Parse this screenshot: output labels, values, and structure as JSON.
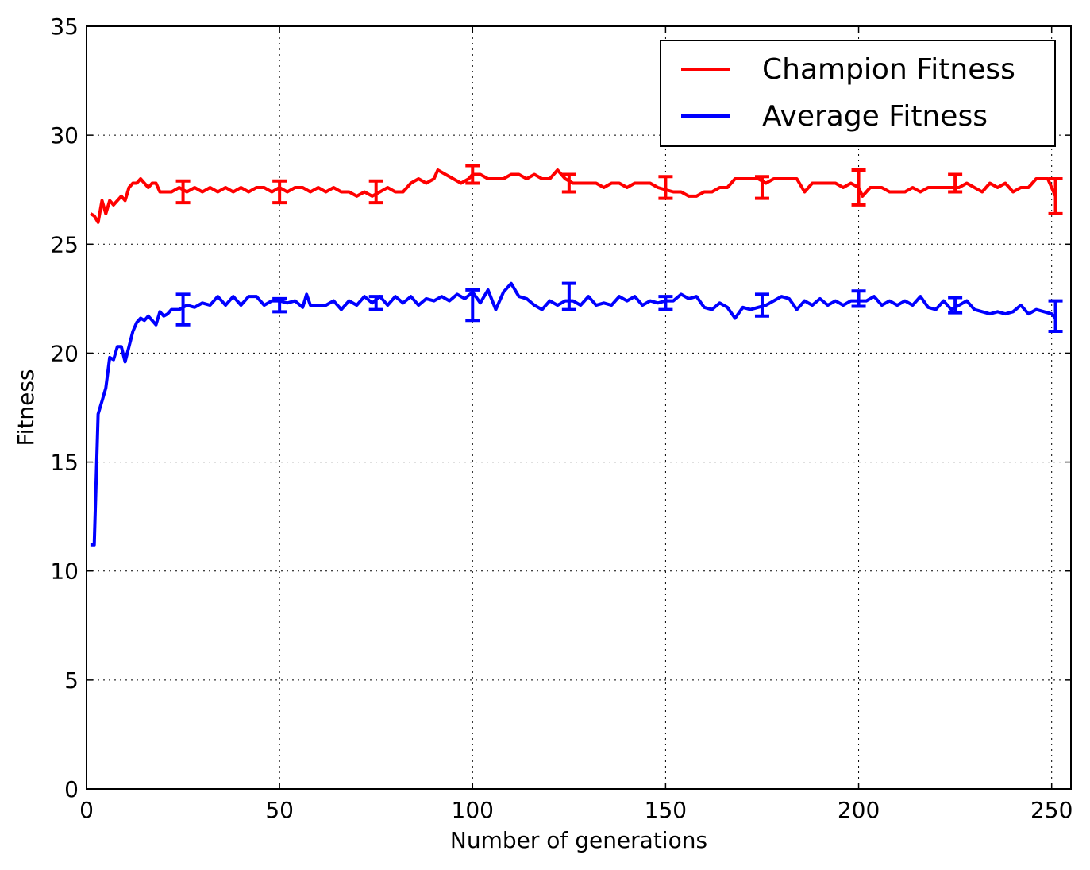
{
  "chart_data": {
    "type": "line",
    "xlabel": "Number of generations",
    "ylabel": "Fitness",
    "xlim": [
      0,
      255
    ],
    "ylim": [
      0,
      35
    ],
    "xticks": [
      0,
      50,
      100,
      150,
      200,
      250
    ],
    "yticks": [
      0,
      5,
      10,
      15,
      20,
      25,
      30,
      35
    ],
    "grid": true,
    "legend_position": "top-right",
    "series": [
      {
        "name": "Champion Fitness",
        "color": "#ff0000",
        "points": [
          [
            1,
            26.4
          ],
          [
            2,
            26.3
          ],
          [
            3,
            26.0
          ],
          [
            4,
            27.0
          ],
          [
            5,
            26.4
          ],
          [
            6,
            27.0
          ],
          [
            7,
            26.8
          ],
          [
            8,
            27.0
          ],
          [
            9,
            27.2
          ],
          [
            10,
            27.0
          ],
          [
            11,
            27.6
          ],
          [
            12,
            27.8
          ],
          [
            13,
            27.8
          ],
          [
            14,
            28.0
          ],
          [
            15,
            27.8
          ],
          [
            16,
            27.6
          ],
          [
            17,
            27.8
          ],
          [
            18,
            27.8
          ],
          [
            19,
            27.4
          ],
          [
            20,
            27.4
          ],
          [
            22,
            27.4
          ],
          [
            24,
            27.6
          ],
          [
            26,
            27.4
          ],
          [
            28,
            27.6
          ],
          [
            30,
            27.4
          ],
          [
            32,
            27.6
          ],
          [
            34,
            27.4
          ],
          [
            36,
            27.6
          ],
          [
            38,
            27.4
          ],
          [
            40,
            27.6
          ],
          [
            42,
            27.4
          ],
          [
            44,
            27.6
          ],
          [
            46,
            27.6
          ],
          [
            48,
            27.4
          ],
          [
            50,
            27.6
          ],
          [
            52,
            27.4
          ],
          [
            54,
            27.6
          ],
          [
            56,
            27.6
          ],
          [
            58,
            27.4
          ],
          [
            60,
            27.6
          ],
          [
            62,
            27.4
          ],
          [
            64,
            27.6
          ],
          [
            66,
            27.4
          ],
          [
            68,
            27.4
          ],
          [
            70,
            27.2
          ],
          [
            72,
            27.4
          ],
          [
            74,
            27.2
          ],
          [
            76,
            27.4
          ],
          [
            78,
            27.6
          ],
          [
            80,
            27.4
          ],
          [
            82,
            27.4
          ],
          [
            84,
            27.8
          ],
          [
            86,
            28.0
          ],
          [
            88,
            27.8
          ],
          [
            90,
            28.0
          ],
          [
            91,
            28.4
          ],
          [
            93,
            28.2
          ],
          [
            95,
            28.0
          ],
          [
            97,
            27.8
          ],
          [
            99,
            28.0
          ],
          [
            100,
            28.2
          ],
          [
            102,
            28.2
          ],
          [
            104,
            28.0
          ],
          [
            106,
            28.0
          ],
          [
            108,
            28.0
          ],
          [
            110,
            28.2
          ],
          [
            112,
            28.2
          ],
          [
            114,
            28.0
          ],
          [
            116,
            28.2
          ],
          [
            118,
            28.0
          ],
          [
            120,
            28.0
          ],
          [
            122,
            28.4
          ],
          [
            124,
            28.0
          ],
          [
            126,
            27.8
          ],
          [
            128,
            27.8
          ],
          [
            132,
            27.8
          ],
          [
            134,
            27.6
          ],
          [
            136,
            27.8
          ],
          [
            138,
            27.8
          ],
          [
            140,
            27.6
          ],
          [
            142,
            27.8
          ],
          [
            146,
            27.8
          ],
          [
            148,
            27.6
          ],
          [
            152,
            27.4
          ],
          [
            154,
            27.4
          ],
          [
            156,
            27.2
          ],
          [
            158,
            27.2
          ],
          [
            160,
            27.4
          ],
          [
            162,
            27.4
          ],
          [
            164,
            27.6
          ],
          [
            166,
            27.6
          ],
          [
            168,
            28.0
          ],
          [
            174,
            28.0
          ],
          [
            176,
            27.8
          ],
          [
            178,
            28.0
          ],
          [
            184,
            28.0
          ],
          [
            186,
            27.4
          ],
          [
            188,
            27.8
          ],
          [
            194,
            27.8
          ],
          [
            196,
            27.6
          ],
          [
            198,
            27.8
          ],
          [
            200,
            27.6
          ],
          [
            201,
            27.2
          ],
          [
            203,
            27.6
          ],
          [
            206,
            27.6
          ],
          [
            208,
            27.4
          ],
          [
            212,
            27.4
          ],
          [
            214,
            27.6
          ],
          [
            216,
            27.4
          ],
          [
            218,
            27.6
          ],
          [
            226,
            27.6
          ],
          [
            228,
            27.8
          ],
          [
            230,
            27.6
          ],
          [
            232,
            27.4
          ],
          [
            234,
            27.8
          ],
          [
            236,
            27.6
          ],
          [
            238,
            27.8
          ],
          [
            240,
            27.4
          ],
          [
            242,
            27.6
          ],
          [
            244,
            27.6
          ],
          [
            246,
            28.0
          ],
          [
            249,
            28.0
          ],
          [
            251,
            27.2
          ]
        ],
        "error_bars": [
          [
            25,
            27.4,
            0.5
          ],
          [
            50,
            27.4,
            0.5
          ],
          [
            75,
            27.4,
            0.5
          ],
          [
            100,
            28.2,
            0.4
          ],
          [
            125,
            27.8,
            0.4
          ],
          [
            150,
            27.6,
            0.5
          ],
          [
            175,
            27.6,
            0.5
          ],
          [
            200,
            27.6,
            0.8
          ],
          [
            225,
            27.8,
            0.4
          ],
          [
            251,
            27.2,
            0.8
          ]
        ]
      },
      {
        "name": "Average Fitness",
        "color": "#0000ff",
        "points": [
          [
            1,
            11.2
          ],
          [
            2,
            11.2
          ],
          [
            3,
            17.2
          ],
          [
            4,
            17.8
          ],
          [
            5,
            18.4
          ],
          [
            6,
            19.8
          ],
          [
            7,
            19.7
          ],
          [
            8,
            20.3
          ],
          [
            9,
            20.3
          ],
          [
            10,
            19.6
          ],
          [
            12,
            21.0
          ],
          [
            13,
            21.4
          ],
          [
            14,
            21.6
          ],
          [
            15,
            21.5
          ],
          [
            16,
            21.7
          ],
          [
            17,
            21.5
          ],
          [
            18,
            21.3
          ],
          [
            19,
            21.9
          ],
          [
            20,
            21.7
          ],
          [
            21,
            21.8
          ],
          [
            22,
            22.0
          ],
          [
            24,
            22.0
          ],
          [
            26,
            22.2
          ],
          [
            28,
            22.1
          ],
          [
            30,
            22.3
          ],
          [
            32,
            22.2
          ],
          [
            34,
            22.6
          ],
          [
            36,
            22.2
          ],
          [
            38,
            22.6
          ],
          [
            40,
            22.2
          ],
          [
            42,
            22.6
          ],
          [
            44,
            22.6
          ],
          [
            46,
            22.2
          ],
          [
            48,
            22.4
          ],
          [
            50,
            22.4
          ],
          [
            52,
            22.3
          ],
          [
            54,
            22.4
          ],
          [
            56,
            22.1
          ],
          [
            57,
            22.7
          ],
          [
            58,
            22.2
          ],
          [
            60,
            22.2
          ],
          [
            62,
            22.2
          ],
          [
            64,
            22.4
          ],
          [
            66,
            22.0
          ],
          [
            68,
            22.4
          ],
          [
            70,
            22.2
          ],
          [
            72,
            22.6
          ],
          [
            74,
            22.3
          ],
          [
            76,
            22.6
          ],
          [
            78,
            22.2
          ],
          [
            80,
            22.6
          ],
          [
            82,
            22.3
          ],
          [
            84,
            22.6
          ],
          [
            86,
            22.2
          ],
          [
            88,
            22.5
          ],
          [
            90,
            22.4
          ],
          [
            92,
            22.6
          ],
          [
            94,
            22.4
          ],
          [
            96,
            22.7
          ],
          [
            98,
            22.5
          ],
          [
            100,
            22.8
          ],
          [
            102,
            22.3
          ],
          [
            104,
            22.9
          ],
          [
            106,
            22.0
          ],
          [
            108,
            22.8
          ],
          [
            110,
            23.2
          ],
          [
            112,
            22.6
          ],
          [
            114,
            22.5
          ],
          [
            116,
            22.2
          ],
          [
            118,
            22.0
          ],
          [
            120,
            22.4
          ],
          [
            122,
            22.2
          ],
          [
            124,
            22.4
          ],
          [
            126,
            22.4
          ],
          [
            128,
            22.2
          ],
          [
            130,
            22.6
          ],
          [
            132,
            22.2
          ],
          [
            134,
            22.3
          ],
          [
            136,
            22.2
          ],
          [
            138,
            22.6
          ],
          [
            140,
            22.4
          ],
          [
            142,
            22.6
          ],
          [
            144,
            22.2
          ],
          [
            146,
            22.4
          ],
          [
            148,
            22.3
          ],
          [
            150,
            22.4
          ],
          [
            152,
            22.4
          ],
          [
            154,
            22.7
          ],
          [
            156,
            22.5
          ],
          [
            158,
            22.6
          ],
          [
            160,
            22.1
          ],
          [
            162,
            22.0
          ],
          [
            164,
            22.3
          ],
          [
            166,
            22.1
          ],
          [
            168,
            21.6
          ],
          [
            170,
            22.1
          ],
          [
            172,
            22.0
          ],
          [
            174,
            22.1
          ],
          [
            176,
            22.2
          ],
          [
            178,
            22.4
          ],
          [
            180,
            22.6
          ],
          [
            182,
            22.5
          ],
          [
            184,
            22.0
          ],
          [
            186,
            22.4
          ],
          [
            188,
            22.2
          ],
          [
            190,
            22.5
          ],
          [
            192,
            22.2
          ],
          [
            194,
            22.4
          ],
          [
            196,
            22.2
          ],
          [
            198,
            22.4
          ],
          [
            200,
            22.4
          ],
          [
            202,
            22.4
          ],
          [
            204,
            22.6
          ],
          [
            206,
            22.2
          ],
          [
            208,
            22.4
          ],
          [
            210,
            22.2
          ],
          [
            212,
            22.4
          ],
          [
            214,
            22.2
          ],
          [
            216,
            22.6
          ],
          [
            218,
            22.1
          ],
          [
            220,
            22.0
          ],
          [
            222,
            22.4
          ],
          [
            224,
            22.0
          ],
          [
            226,
            22.2
          ],
          [
            228,
            22.4
          ],
          [
            230,
            22.0
          ],
          [
            232,
            21.9
          ],
          [
            234,
            21.8
          ],
          [
            236,
            21.9
          ],
          [
            238,
            21.8
          ],
          [
            240,
            21.9
          ],
          [
            242,
            22.2
          ],
          [
            244,
            21.8
          ],
          [
            246,
            22.0
          ],
          [
            248,
            21.9
          ],
          [
            250,
            21.8
          ],
          [
            251,
            21.6
          ]
        ],
        "error_bars": [
          [
            25,
            22.0,
            0.7
          ],
          [
            50,
            22.2,
            0.3
          ],
          [
            75,
            22.3,
            0.3
          ],
          [
            100,
            22.2,
            0.7
          ],
          [
            125,
            22.6,
            0.6
          ],
          [
            150,
            22.3,
            0.3
          ],
          [
            175,
            22.2,
            0.5
          ],
          [
            200,
            22.5,
            0.35
          ],
          [
            225,
            22.2,
            0.35
          ],
          [
            251,
            21.7,
            0.7
          ]
        ]
      }
    ]
  }
}
